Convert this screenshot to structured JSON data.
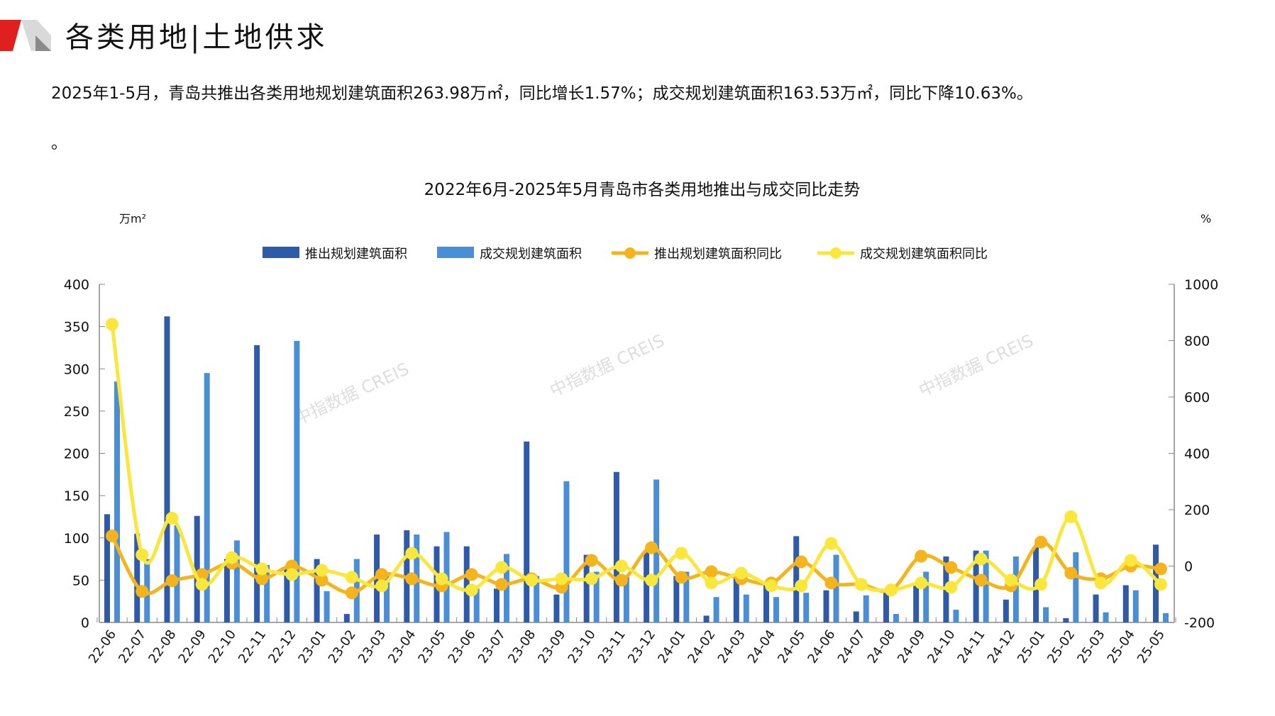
{
  "header": {
    "title": "各类用地|土地供求"
  },
  "summary": "2025年1-5月，青岛共推出各类用地规划建筑面积263.98万㎡，同比增长1.57%；成交规划建筑面积163.53万㎡，同比下降10.63%。",
  "summary_tail": "。",
  "watermark": "中指数据 CREIS",
  "colors": {
    "launch": "#2E5AA8",
    "deal": "#4A8FD6",
    "launch_yoy": "#F5B41C",
    "deal_yoy": "#FBE63C"
  },
  "chart_data": {
    "type": "bar",
    "title": "2022年6月-2025年5月青岛市各类用地推出与成交同比走势",
    "ylabel": "万m²",
    "y2label": "%",
    "ylim": [
      0,
      400
    ],
    "yticks": [
      0,
      50,
      100,
      150,
      200,
      250,
      300,
      350,
      400
    ],
    "y2lim": [
      -200,
      1000
    ],
    "y2ticks": [
      -200,
      0,
      200,
      400,
      600,
      800,
      1000
    ],
    "legend_position": "top",
    "categories": [
      "22-06",
      "22-07",
      "22-08",
      "22-09",
      "22-10",
      "22-11",
      "22-12",
      "23-01",
      "23-02",
      "23-03",
      "23-04",
      "23-05",
      "23-06",
      "23-07",
      "23-08",
      "23-09",
      "23-10",
      "23-11",
      "23-12",
      "24-01",
      "24-02",
      "24-03",
      "24-04",
      "24-05",
      "24-06",
      "24-07",
      "24-08",
      "24-09",
      "24-10",
      "24-11",
      "24-12",
      "25-01",
      "25-02",
      "25-03",
      "25-04",
      "25-05"
    ],
    "series": [
      {
        "name": "推出规划建筑面积",
        "type": "bar",
        "axis": "left",
        "values": [
          128,
          105,
          362,
          126,
          75,
          328,
          65,
          75,
          10,
          104,
          109,
          90,
          90,
          40,
          214,
          33,
          80,
          178,
          85,
          55,
          8,
          55,
          45,
          102,
          38,
          13,
          38,
          45,
          78,
          85,
          27,
          90,
          5,
          33,
          44,
          92
        ]
      },
      {
        "name": "成交规划建筑面积",
        "type": "bar",
        "axis": "left",
        "values": [
          285,
          75,
          115,
          295,
          97,
          68,
          333,
          37,
          75,
          55,
          104,
          107,
          40,
          81,
          55,
          167,
          60,
          55,
          169,
          60,
          30,
          33,
          30,
          35,
          80,
          32,
          10,
          60,
          15,
          85,
          78,
          18,
          83,
          12,
          38,
          11
        ]
      },
      {
        "name": "推出规划建筑面积同比",
        "type": "line",
        "axis": "right",
        "values": [
          107,
          -90,
          -52,
          -30,
          10,
          -45,
          0,
          -50,
          -95,
          -30,
          -45,
          -70,
          -30,
          -65,
          -45,
          -75,
          20,
          -50,
          65,
          -40,
          -20,
          -45,
          -60,
          15,
          -60,
          -65,
          -85,
          35,
          -5,
          -50,
          -70,
          85,
          -25,
          -45,
          0,
          -10
        ]
      },
      {
        "name": "成交规划建筑面积同比",
        "type": "line",
        "axis": "right",
        "values": [
          858,
          40,
          170,
          -65,
          30,
          -10,
          -30,
          -15,
          -40,
          -70,
          45,
          -45,
          -85,
          -5,
          -50,
          -45,
          -45,
          0,
          -50,
          45,
          -60,
          -25,
          -70,
          -70,
          80,
          -65,
          -85,
          -60,
          -75,
          25,
          -50,
          -65,
          175,
          -60,
          20,
          -65
        ]
      }
    ]
  }
}
